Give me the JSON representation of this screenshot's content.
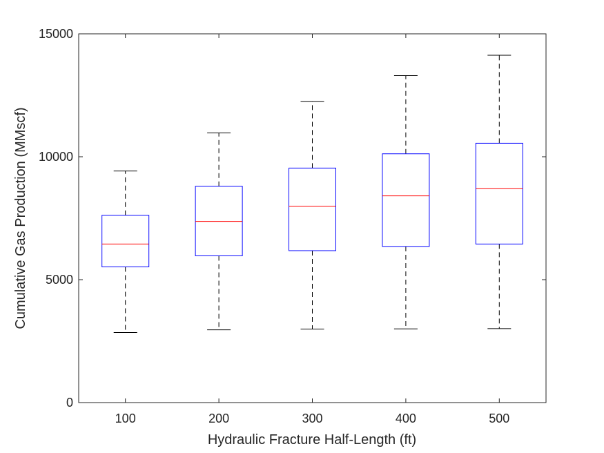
{
  "chart_data": {
    "type": "box",
    "title": "",
    "xlabel": "Hydraulic Fracture Half-Length (ft)",
    "ylabel": "Cumulative Gas Production (MMscf)",
    "categories": [
      "100",
      "200",
      "300",
      "400",
      "500"
    ],
    "ylim": [
      0,
      15000
    ],
    "yticks": [
      0,
      5000,
      10000,
      15000
    ],
    "grid": false,
    "colors": {
      "box": "#0000ff",
      "median": "#ff0000",
      "whisker": "#000000",
      "axis": "#262626"
    },
    "boxes": [
      {
        "category": "100",
        "min": 2850,
        "q1": 5520,
        "median": 6450,
        "q3": 7620,
        "max": 9420
      },
      {
        "category": "200",
        "min": 2960,
        "q1": 5970,
        "median": 7370,
        "q3": 8800,
        "max": 10970
      },
      {
        "category": "300",
        "min": 2990,
        "q1": 6180,
        "median": 7990,
        "q3": 9540,
        "max": 12250
      },
      {
        "category": "400",
        "min": 3000,
        "q1": 6350,
        "median": 8410,
        "q3": 10120,
        "max": 13300
      },
      {
        "category": "500",
        "min": 3010,
        "q1": 6450,
        "median": 8710,
        "q3": 10550,
        "max": 14130
      }
    ]
  }
}
